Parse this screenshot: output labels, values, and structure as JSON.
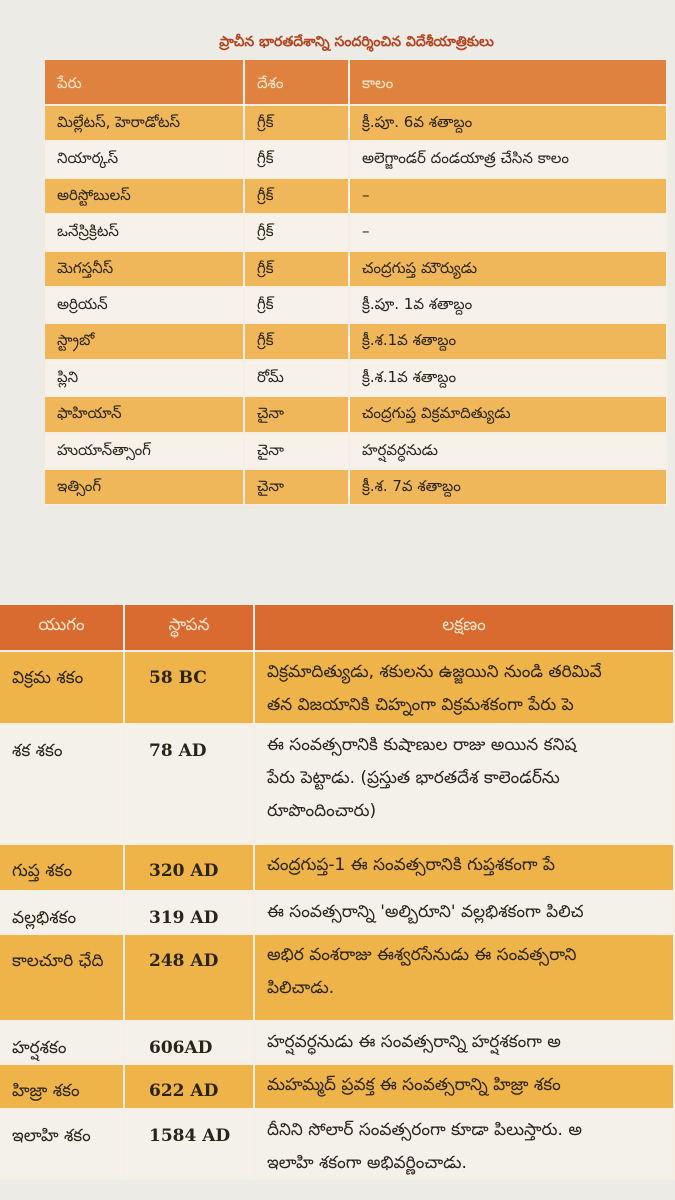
{
  "table1": {
    "title": "ప్రాచీన భారతదేశాన్ని సందర్శించిన విదేశీయాత్రికులు",
    "header": [
      "పేరు",
      "దేశం",
      "కాలం"
    ],
    "rows": [
      [
        "మిల్లేటస్, హెరాడోటస్",
        "గ్రీక్",
        "క్రీ.పూ. 6వ శతాబ్దం"
      ],
      [
        "నియార్కస్",
        "గ్రీక్",
        "అలెగ్జాండర్ దండయాత్ర చేసిన కాలం"
      ],
      [
        "అరిస్టోబులస్",
        "గ్రీక్",
        "–"
      ],
      [
        "ఒనేస్రిక్రిటస్",
        "గ్రీక్",
        "–"
      ],
      [
        "మెగస్తనీస్",
        "గ్రీక్",
        "చంద్రగుప్త మౌర్యుడు"
      ],
      [
        "అర్రియన్",
        "గ్రీక్",
        "క్రీ.పూ. 1వ శతాబ్దం"
      ],
      [
        "స్ట్రాబో",
        "గ్రీక్",
        "క్రీ.శ.1వ శతాబ్దం"
      ],
      [
        "ప్లిని",
        "రోమ్",
        "క్రీ.శ.1వ శతాబ్దం"
      ],
      [
        "ఫాహియాన్",
        "చైనా",
        "చంద్రగుప్త విక్రమాదిత్యుడు"
      ],
      [
        "హుయాన్‌త్సాంగ్",
        "చైనా",
        "హర్షవర్ధనుడు"
      ],
      [
        "ఇత్సింగ్",
        "చైనా",
        "క్రీ.శ. 7వ శతాబ్దం"
      ]
    ]
  },
  "table2": {
    "header": [
      "యుగం",
      "స్థాపన",
      "లక్షణం"
    ],
    "rows": [
      [
        "విక్రమ శకం",
        "58 BC",
        [
          "విక్రమాదిత్యుడు, శకులను ఉజ్జయిని నుండి తరిమివే",
          "తన విజయానికి చిహ్నంగా విక్రమశకంగా పేరు పె"
        ]
      ],
      [
        "శక శకం",
        "78 AD",
        [
          "ఈ సంవత్సరానికి కుషాణుల రాజు అయిన కనిష",
          "పేరు పెట్టాడు. (ప్రస్తుత భారతదేశ కాలెండర్‌ను",
          "రూపొందించారు)"
        ]
      ],
      [
        "గుప్త శకం",
        "320 AD",
        [
          "చంద్రగుప్త-1 ఈ సంవత్సరానికి గుప్తశకంగా పే"
        ]
      ],
      [
        "వల్లభిశకం",
        "319 AD",
        [
          "ఈ సంవత్సరాన్ని 'అల్బిరూని' వల్లభిశకంగా పిలిచ"
        ]
      ],
      [
        "కాలచూరి ఛేది",
        "248 AD",
        [
          "అభిర వంశరాజు ఈశ్వరసేనుడు ఈ సంవత్సరాని",
          "పిలిచాడు."
        ]
      ],
      [
        "హర్షశకం",
        "606AD",
        [
          "హర్షవర్ధనుడు ఈ సంవత్సరాన్ని హర్షశకంగా అ"
        ]
      ],
      [
        "హిజ్రా శకం",
        "622 AD",
        [
          "మహమ్మద్ ప్రవక్త ఈ సంవత్సరాన్ని హిజ్రా శకం"
        ]
      ],
      [
        "ఇలాహి శకం",
        "1584 AD",
        [
          "దీనిని సోలార్ సంవత్సరంగా కూడా పిలుస్తారు. అ",
          "ఇలాహి శకంగా అభివర్ణించాడు."
        ]
      ]
    ]
  }
}
